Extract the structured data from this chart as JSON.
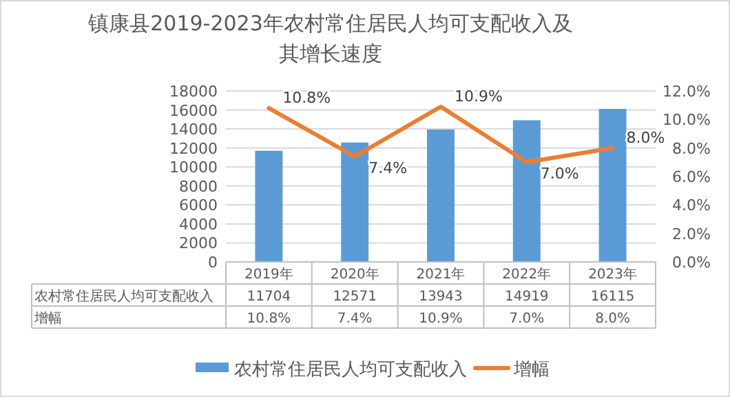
{
  "chart_data": {
    "type": "bar",
    "title": "镇康县2019-2023年农村常住居民人均可支配收入及其增长速度",
    "categories": [
      "2019年",
      "2020年",
      "2021年",
      "2022年",
      "2023年"
    ],
    "series": [
      {
        "name": "农村常住居民人均可支配收入",
        "color": "#5b9bd5",
        "values": [
          11704,
          12571,
          13943,
          14919,
          16115
        ],
        "data_labels": true
      },
      {
        "name": "增幅",
        "type": "line",
        "axis": "y2",
        "color": "#ed7d31",
        "values": [
          10.8,
          7.4,
          10.9,
          7.0,
          8.0
        ],
        "value_labels": [
          "10.8%",
          "7.4%",
          "10.9%",
          "7.0%",
          "8.0%"
        ]
      }
    ],
    "ylim": [
      0,
      18000
    ],
    "yticks": [
      0,
      2000,
      4000,
      6000,
      8000,
      10000,
      12000,
      14000,
      16000,
      18000
    ],
    "y2lim": [
      0,
      12
    ],
    "y2ticks": [
      {
        "value": 0,
        "label": "0.0%"
      },
      {
        "value": 2,
        "label": "2.0%"
      },
      {
        "value": 4,
        "label": "4.0%"
      },
      {
        "value": 6,
        "label": "6.0%"
      },
      {
        "value": 8,
        "label": "8.0%"
      },
      {
        "value": 10,
        "label": "10.0%"
      },
      {
        "value": 12,
        "label": "12.0%"
      }
    ],
    "grid": "y",
    "legend": "bottom",
    "marker": "none",
    "line_style": "solid"
  }
}
